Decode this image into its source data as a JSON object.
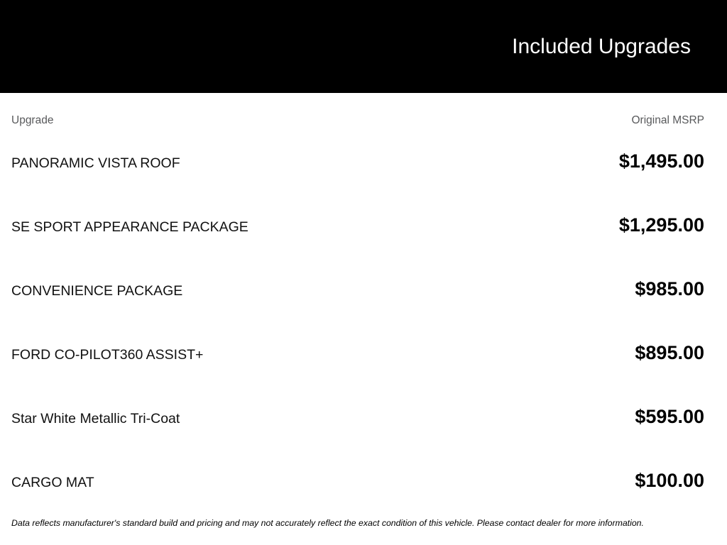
{
  "header": {
    "title": "Included Upgrades"
  },
  "table": {
    "columns": {
      "upgrade": "Upgrade",
      "msrp": "Original MSRP"
    },
    "rows": [
      {
        "upgrade": "PANORAMIC VISTA ROOF",
        "msrp": "$1,495.00"
      },
      {
        "upgrade": "SE SPORT APPEARANCE PACKAGE",
        "msrp": "$1,295.00"
      },
      {
        "upgrade": "CONVENIENCE PACKAGE",
        "msrp": "$985.00"
      },
      {
        "upgrade": "FORD CO-PILOT360 ASSIST+",
        "msrp": "$895.00"
      },
      {
        "upgrade": "Star White Metallic Tri-Coat",
        "msrp": "$595.00"
      },
      {
        "upgrade": "CARGO MAT",
        "msrp": "$100.00"
      }
    ]
  },
  "disclaimer": "Data reflects manufacturer's standard build and pricing and may not accurately reflect the exact condition of this vehicle. Please contact dealer for more information.",
  "colors": {
    "header_background": "#000000",
    "header_title": "#ffffff",
    "column_header_text": "#58595b",
    "row_text": "#111111",
    "price_text": "#000000",
    "page_background": "#ffffff"
  }
}
